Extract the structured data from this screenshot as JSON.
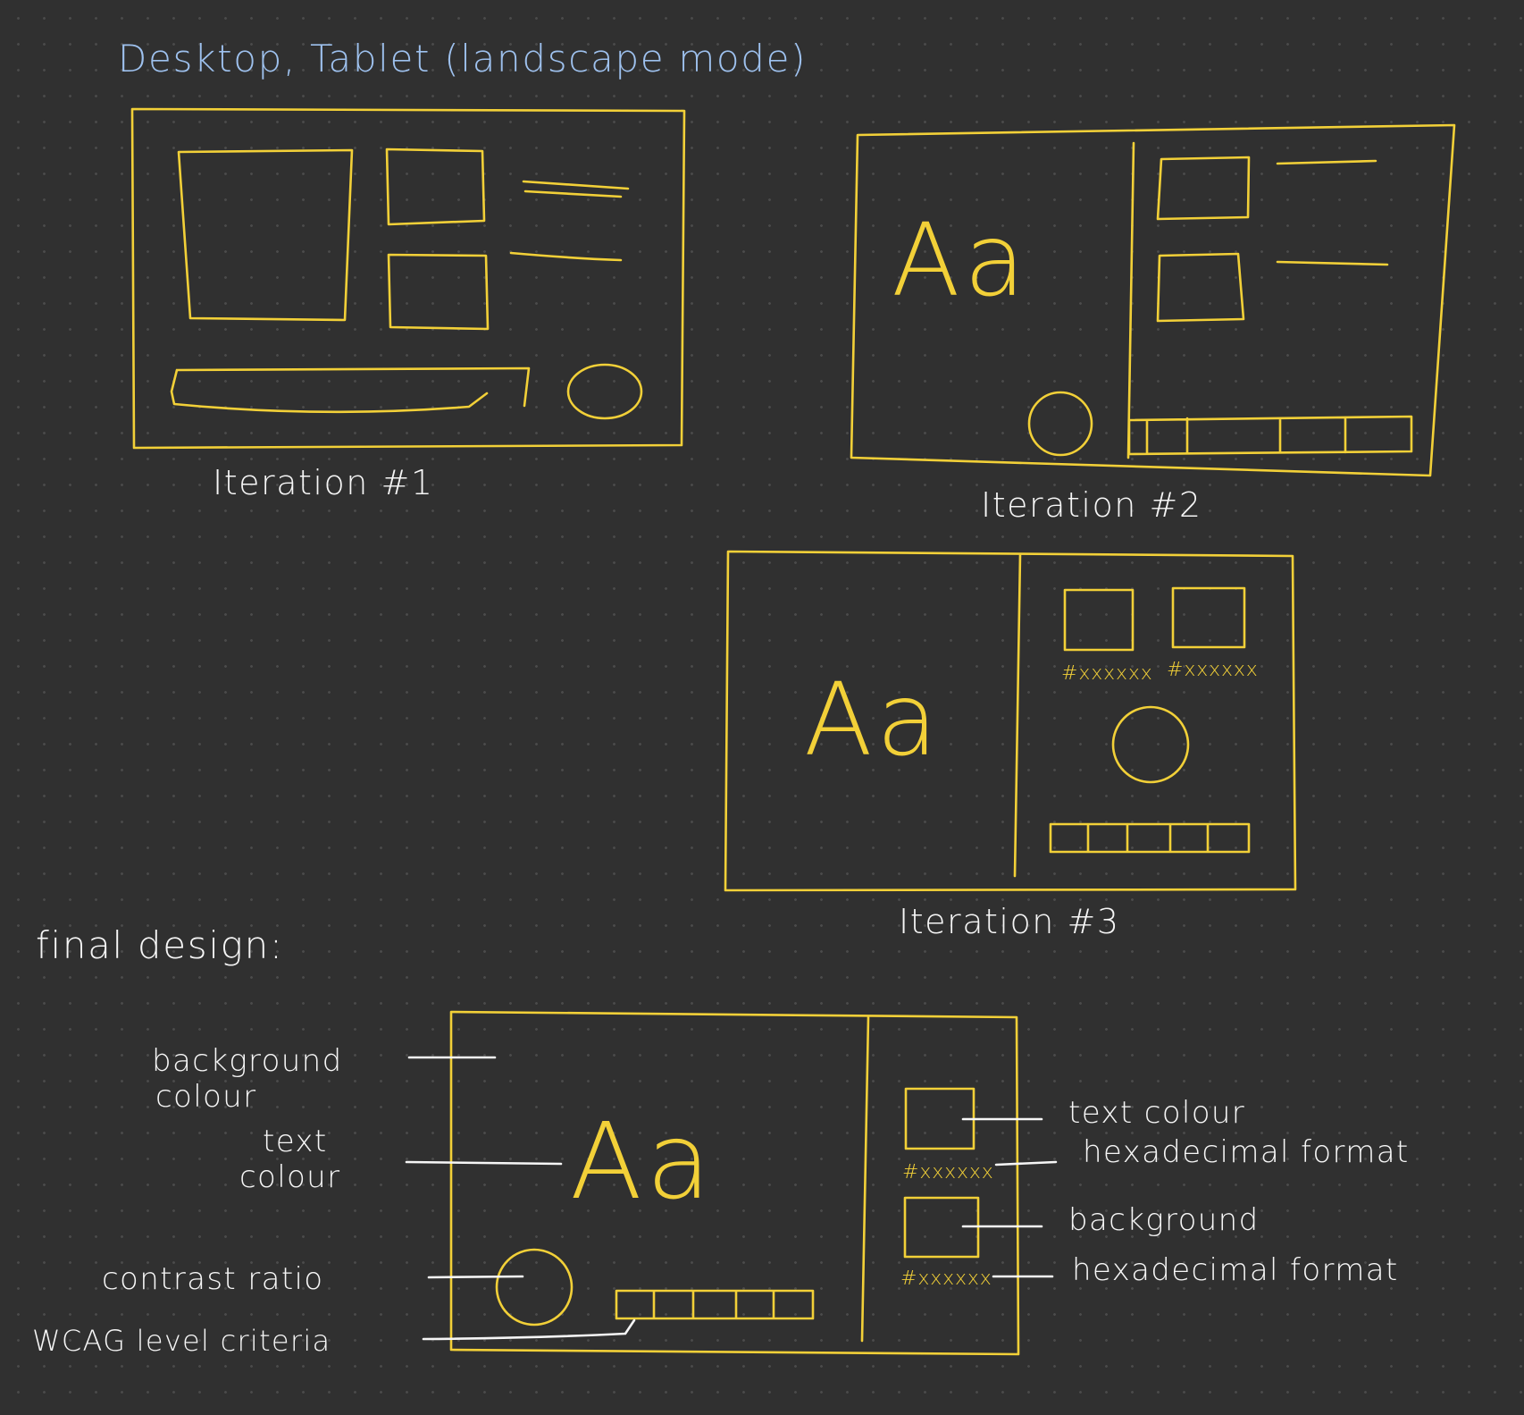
{
  "heading": "Desktop, Tablet (landscape mode)",
  "iterations": {
    "one": "Iteration #1",
    "two": "Iteration #2",
    "three": "Iteration #3"
  },
  "sample_text": "Aa",
  "hex_placeholder": "#xxxxxx",
  "final_design": {
    "title": "final design:",
    "labels": {
      "background_colour_line1": "background",
      "background_colour_line2": "colour",
      "text_colour_line1": "text",
      "text_colour_line2": "colour",
      "contrast_ratio": "contrast ratio",
      "wcag": "WCAG level criteria",
      "swatch_text_colour": "text colour",
      "hex_format_1": "hexadecimal format",
      "swatch_background": "background",
      "hex_format_2": "hexadecimal format"
    }
  },
  "colors": {
    "background": "#303030",
    "sketch_lines": "#f2d038",
    "annotations": "#f6f6f6",
    "heading": "#9ec1ee"
  }
}
